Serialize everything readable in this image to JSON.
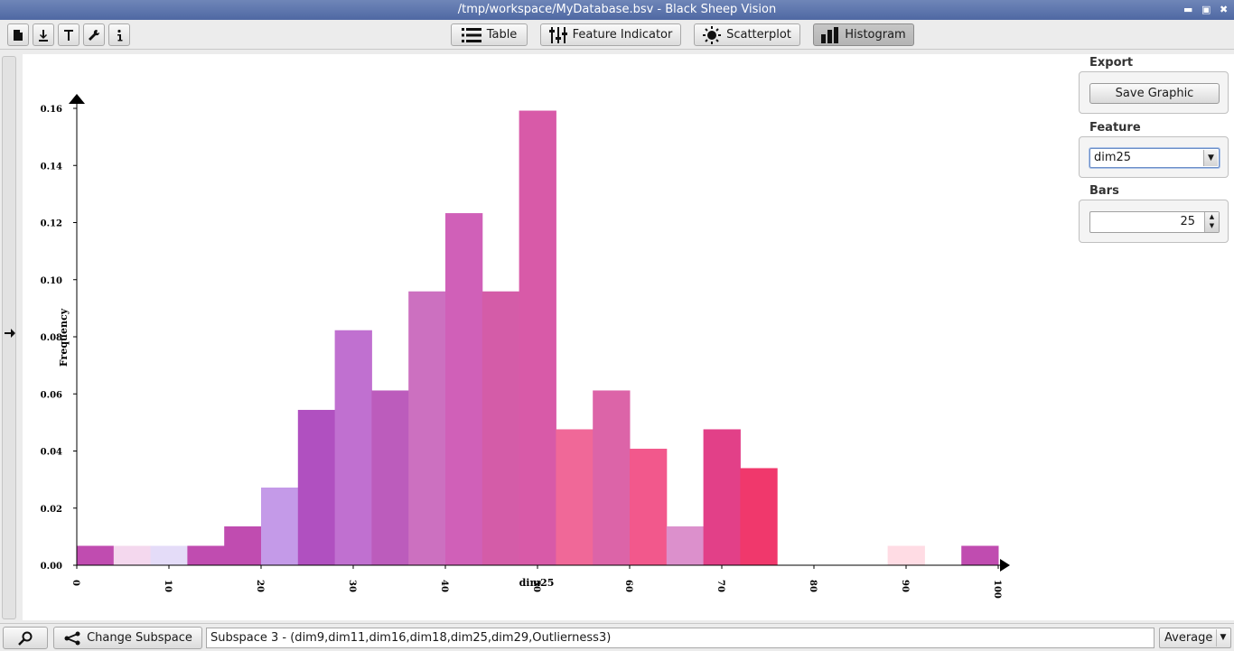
{
  "window": {
    "title": "/tmp/workspace/MyDatabase.bsv - Black Sheep Vision"
  },
  "toolbar": {
    "views": [
      {
        "label": "Table",
        "icon": "list-icon"
      },
      {
        "label": "Feature Indicator",
        "icon": "sliders-icon"
      },
      {
        "label": "Scatterplot",
        "icon": "sun-icon"
      },
      {
        "label": "Histogram",
        "icon": "bar-chart-icon",
        "active": true
      }
    ],
    "left_icons": [
      "new-file-icon",
      "download-icon",
      "text-format-icon",
      "wrench-icon",
      "info-icon"
    ]
  },
  "side_panel": {
    "export_title": "Export",
    "save_label": "Save Graphic",
    "feature_title": "Feature",
    "feature_value": "dim25",
    "bars_title": "Bars",
    "bars_value": "25"
  },
  "status": {
    "change_label": "Change Subspace",
    "subspace_text": "Subspace 3 - (dim9,dim11,dim16,dim18,dim25,dim29,Outlierness3)",
    "aggregate_value": "Average"
  },
  "chart_data": {
    "type": "bar",
    "xlabel": "dim25",
    "ylabel": "Frequency",
    "xlim": [
      0,
      100
    ],
    "ylim": [
      0,
      0.16
    ],
    "xticks": [
      "0",
      "10",
      "20",
      "30",
      "40",
      "50",
      "60",
      "70",
      "80",
      "90",
      "100"
    ],
    "yticks": [
      "0.00",
      "0.02",
      "0.04",
      "0.06",
      "0.08",
      "0.10",
      "0.12",
      "0.14",
      "0.16"
    ],
    "bin_width": 4,
    "bins": [
      {
        "x": 0,
        "value": 0.0068,
        "color": "#c04cb0"
      },
      {
        "x": 4,
        "value": 0.0068,
        "color": "#f4d8ee"
      },
      {
        "x": 8,
        "value": 0.0068,
        "color": "#e4dcf8"
      },
      {
        "x": 12,
        "value": 0.0068,
        "color": "#c04cb0"
      },
      {
        "x": 16,
        "value": 0.0136,
        "color": "#c04cb0"
      },
      {
        "x": 20,
        "value": 0.0272,
        "color": "#c49ae8"
      },
      {
        "x": 24,
        "value": 0.0544,
        "color": "#b050c0"
      },
      {
        "x": 28,
        "value": 0.0823,
        "color": "#c070d0"
      },
      {
        "x": 32,
        "value": 0.0612,
        "color": "#bc5cbc"
      },
      {
        "x": 36,
        "value": 0.0959,
        "color": "#cc70c0"
      },
      {
        "x": 40,
        "value": 0.1233,
        "color": "#d060b8"
      },
      {
        "x": 44,
        "value": 0.0959,
        "color": "#d45ca8"
      },
      {
        "x": 48,
        "value": 0.1592,
        "color": "#d85aa8"
      },
      {
        "x": 52,
        "value": 0.0476,
        "color": "#f06898"
      },
      {
        "x": 56,
        "value": 0.0612,
        "color": "#dc64a8"
      },
      {
        "x": 60,
        "value": 0.0408,
        "color": "#f2588c"
      },
      {
        "x": 64,
        "value": 0.0136,
        "color": "#dc90cc"
      },
      {
        "x": 68,
        "value": 0.0476,
        "color": "#e24088"
      },
      {
        "x": 72,
        "value": 0.034,
        "color": "#f0386c"
      },
      {
        "x": 76,
        "value": 0,
        "color": "#ffffff"
      },
      {
        "x": 80,
        "value": 0,
        "color": "#ffffff"
      },
      {
        "x": 84,
        "value": 0,
        "color": "#ffffff"
      },
      {
        "x": 88,
        "value": 0.0068,
        "color": "#ffdce4"
      },
      {
        "x": 92,
        "value": 0,
        "color": "#ffffff"
      },
      {
        "x": 96,
        "value": 0.0068,
        "color": "#c04cb0"
      }
    ]
  }
}
